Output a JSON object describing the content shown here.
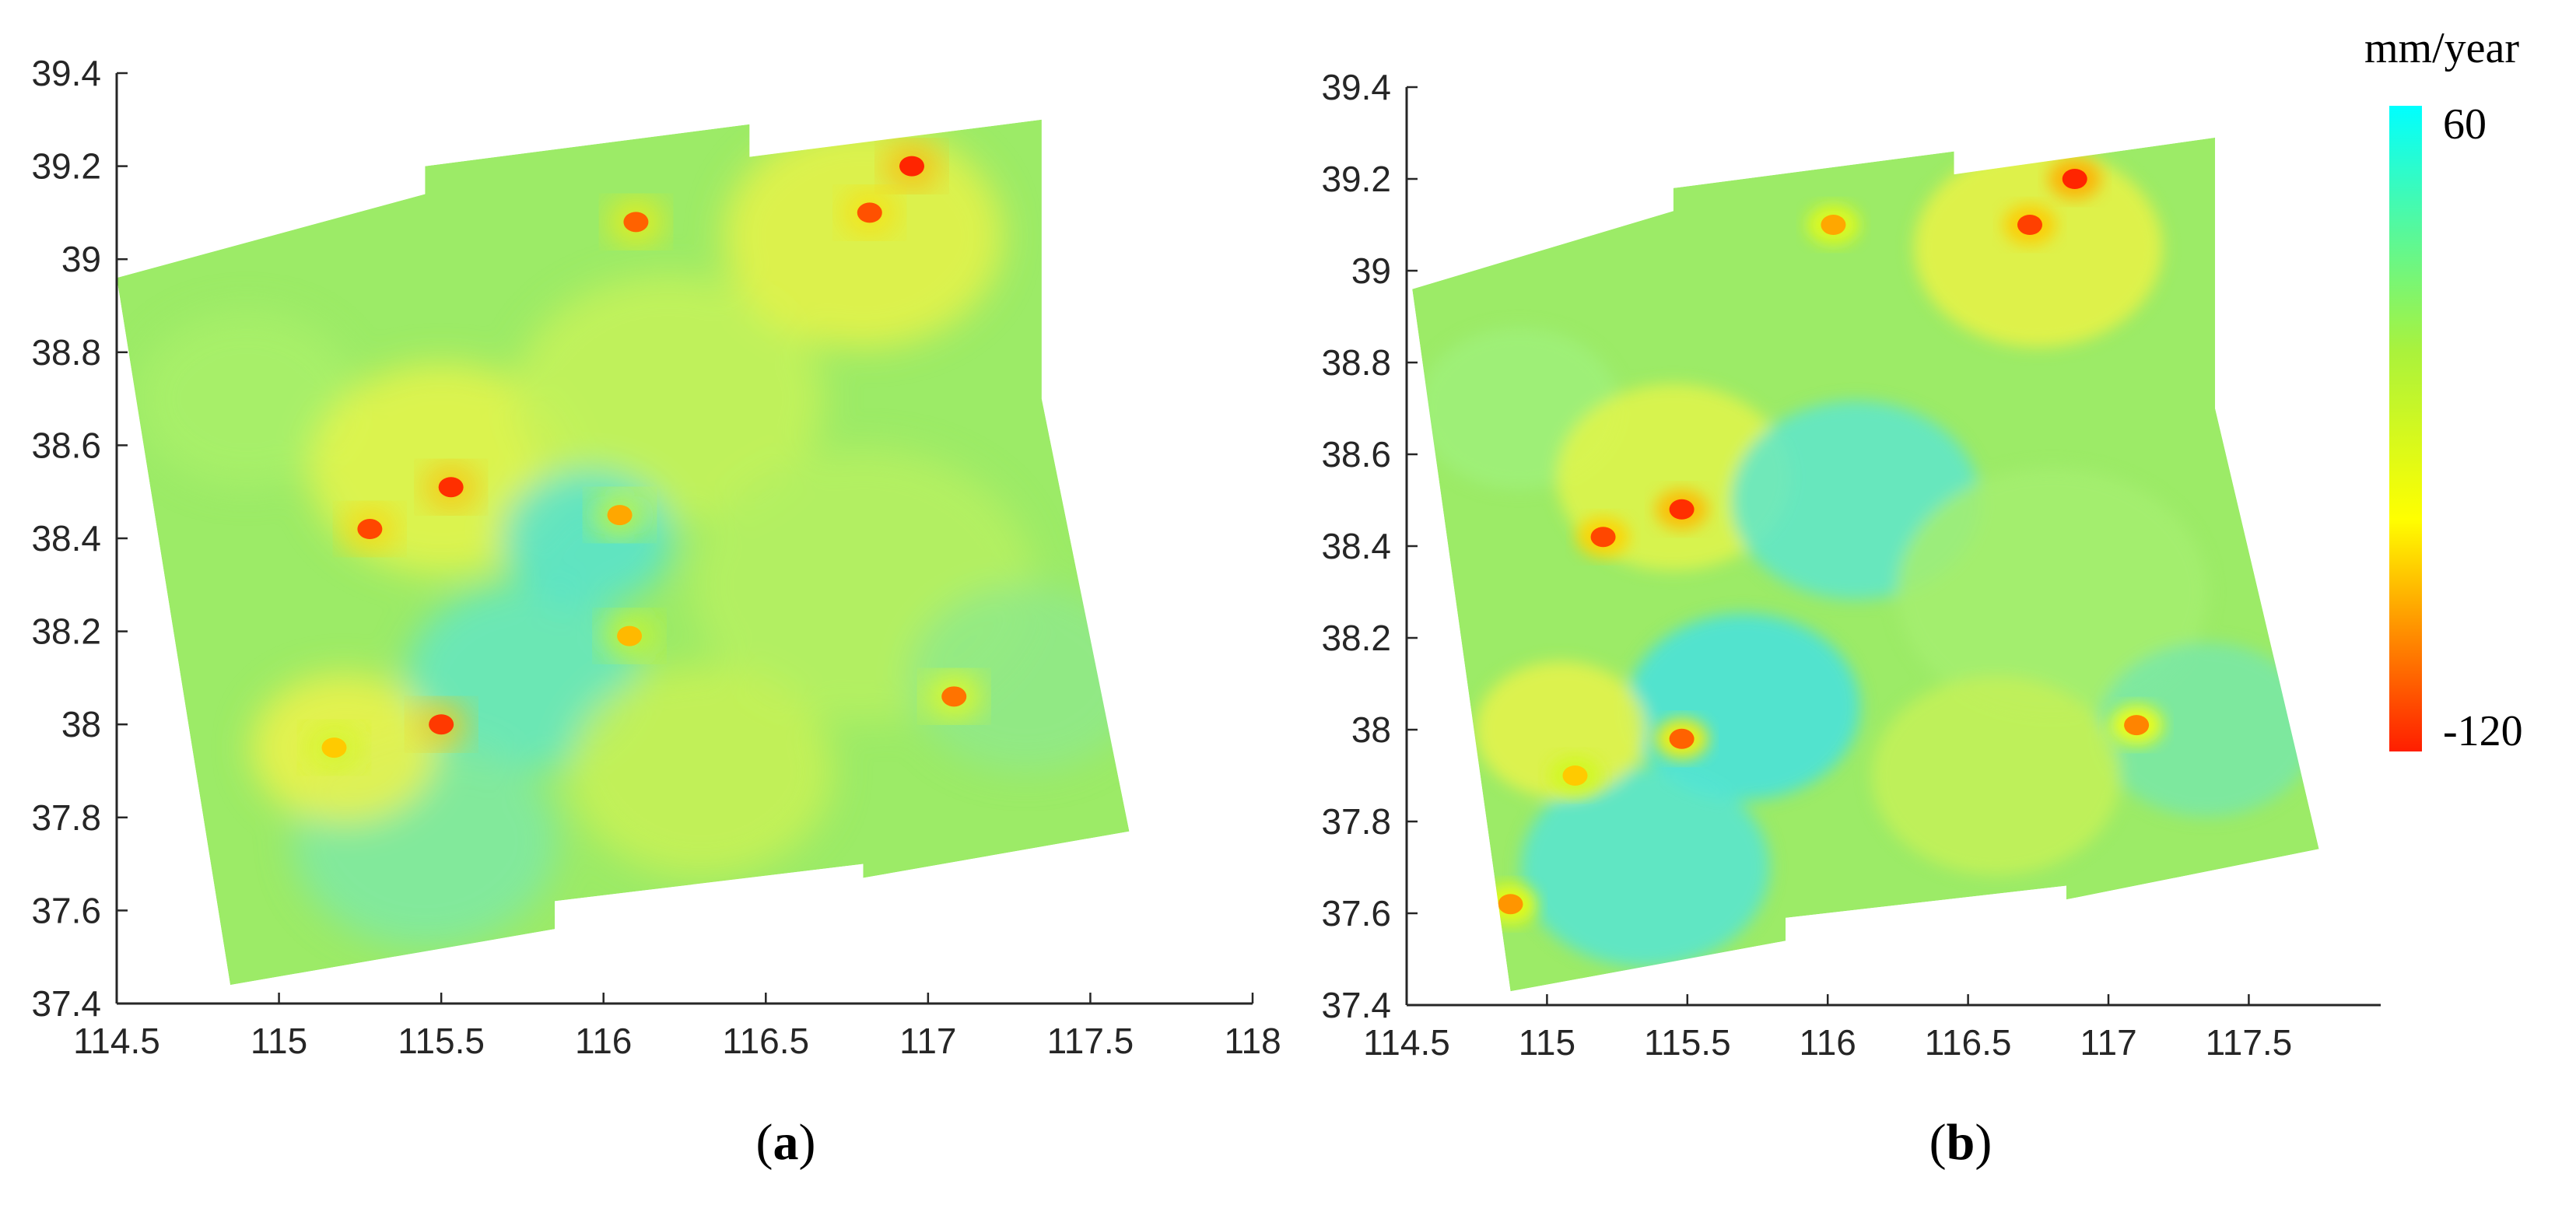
{
  "chart_data": [
    {
      "type": "heatmap",
      "panel_label": "a",
      "xlim": [
        114.5,
        118
      ],
      "ylim": [
        37.4,
        39.4
      ],
      "x_ticks": [
        "114.5",
        "115",
        "115.5",
        "116",
        "116.5",
        "117",
        "117.5",
        "118"
      ],
      "y_ticks": [
        "39.4",
        "39.2",
        "39",
        "38.8",
        "38.6",
        "38.4",
        "38.2",
        "38",
        "37.8",
        "37.6",
        "37.4"
      ],
      "grid": false,
      "footprint_lonlat": [
        [
          114.5,
          38.96
        ],
        [
          115.45,
          39.14
        ],
        [
          115.45,
          39.2
        ],
        [
          116.45,
          39.29
        ],
        [
          116.45,
          39.22
        ],
        [
          117.35,
          39.3
        ],
        [
          117.35,
          38.7
        ],
        [
          117.62,
          37.77
        ],
        [
          116.8,
          37.67
        ],
        [
          116.8,
          37.7
        ],
        [
          115.85,
          37.62
        ],
        [
          115.85,
          37.56
        ],
        [
          114.85,
          37.44
        ]
      ],
      "hotspots": [
        {
          "lon": 116.95,
          "lat": 39.2,
          "value": -118
        },
        {
          "lon": 116.82,
          "lat": 39.1,
          "value": -105
        },
        {
          "lon": 116.1,
          "lat": 39.08,
          "value": -100
        },
        {
          "lon": 115.53,
          "lat": 38.51,
          "value": -115
        },
        {
          "lon": 115.28,
          "lat": 38.42,
          "value": -108
        },
        {
          "lon": 115.5,
          "lat": 38.0,
          "value": -112
        },
        {
          "lon": 117.08,
          "lat": 38.06,
          "value": -95
        },
        {
          "lon": 116.05,
          "lat": 38.45,
          "value": -80
        },
        {
          "lon": 116.08,
          "lat": 38.19,
          "value": -75
        },
        {
          "lon": 115.17,
          "lat": 37.95,
          "value": -70
        }
      ]
    },
    {
      "type": "heatmap",
      "panel_label": "b",
      "xlim": [
        114.5,
        117.97
      ],
      "ylim": [
        37.4,
        39.4
      ],
      "x_ticks": [
        "114.5",
        "115",
        "115.5",
        "116",
        "116.5",
        "117",
        "117.5"
      ],
      "y_ticks": [
        "39.4",
        "39.2",
        "39",
        "38.8",
        "38.6",
        "38.4",
        "38.2",
        "38",
        "37.8",
        "37.6",
        "37.4"
      ],
      "grid": false,
      "footprint_lonlat": [
        [
          114.52,
          38.96
        ],
        [
          115.45,
          39.13
        ],
        [
          115.45,
          39.18
        ],
        [
          116.45,
          39.26
        ],
        [
          116.45,
          39.21
        ],
        [
          117.38,
          39.29
        ],
        [
          117.38,
          38.7
        ],
        [
          117.75,
          37.74
        ],
        [
          116.85,
          37.63
        ],
        [
          116.85,
          37.66
        ],
        [
          115.85,
          37.59
        ],
        [
          115.85,
          37.54
        ],
        [
          114.87,
          37.43
        ]
      ],
      "hotspots": [
        {
          "lon": 116.88,
          "lat": 39.2,
          "value": -118
        },
        {
          "lon": 116.72,
          "lat": 39.1,
          "value": -110
        },
        {
          "lon": 115.48,
          "lat": 38.48,
          "value": -115
        },
        {
          "lon": 115.2,
          "lat": 38.42,
          "value": -108
        },
        {
          "lon": 115.48,
          "lat": 37.98,
          "value": -100
        },
        {
          "lon": 117.1,
          "lat": 38.01,
          "value": -90
        },
        {
          "lon": 116.02,
          "lat": 39.1,
          "value": -80
        },
        {
          "lon": 114.87,
          "lat": 37.62,
          "value": -85
        },
        {
          "lon": 115.1,
          "lat": 37.9,
          "value": -70
        }
      ]
    }
  ],
  "colorbar": {
    "unit": "mm/year",
    "max_label": "60",
    "min_label": "-120",
    "range": [
      -120,
      60
    ],
    "colors_low_to_high": [
      "#ff1e00",
      "#ff8c00",
      "#ffff00",
      "#aaf23c",
      "#00ffff"
    ]
  },
  "captions": {
    "a": "a",
    "b": "b"
  },
  "colors": {
    "base_field": "#9ceb67",
    "axis": "#262626"
  }
}
